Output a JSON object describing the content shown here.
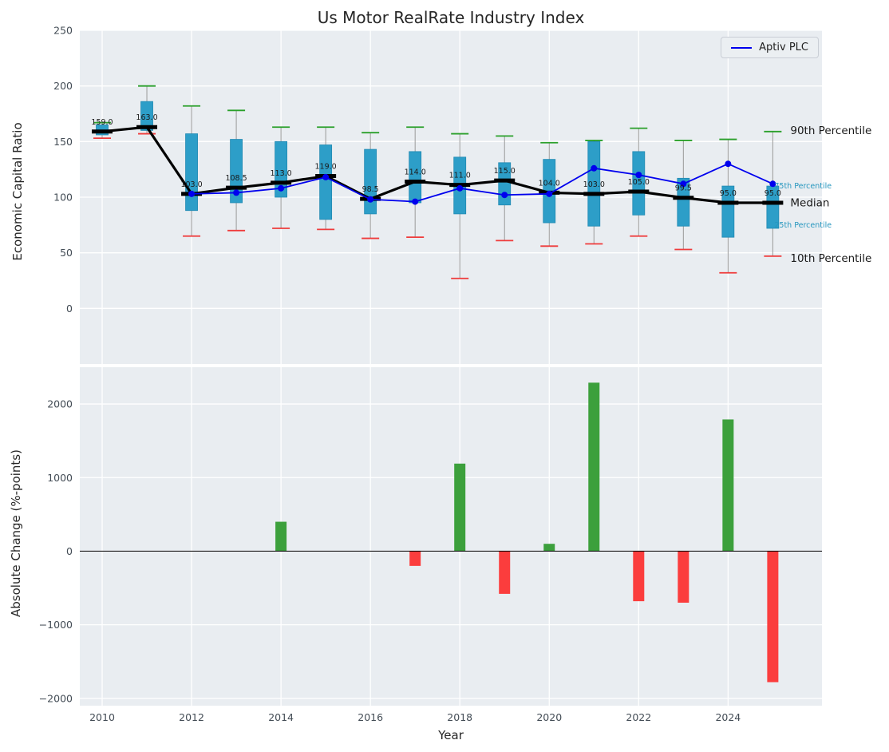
{
  "figure": {
    "title": "Us Motor RealRate Industry Index",
    "xlabel": "Year",
    "top_ylabel": "Economic Capital Ratio",
    "bottom_ylabel": "Absolute Change (%-points)"
  },
  "legend": {
    "label": "Aptiv PLC"
  },
  "colors": {
    "box_fill": "#2D9EC8",
    "box_edge": "#2089B2",
    "whisker": "#999999",
    "p90_cap": "#2AA02A",
    "p10_cap": "#EF3B3B",
    "median": "#000000",
    "aptiv_line": "#0000EE",
    "bar_positive": "#3CA03C",
    "bar_negative": "#FB3D3D",
    "annotation_dark": "#1A1A1A",
    "annotation_teal": "#2596BE",
    "plot_background": "#E9EDF1",
    "grid": "#FFFFFF",
    "tick_label": "#434C55"
  },
  "chart_data": [
    {
      "type": "box",
      "title": "Us Motor RealRate Industry Index",
      "ylabel": "Economic Capital Ratio",
      "ylim": [
        -50,
        250
      ],
      "yticks": [
        0,
        50,
        100,
        150,
        200,
        250
      ],
      "xlim": [
        2009.5,
        2026.1
      ],
      "xticks": [
        2010,
        2012,
        2014,
        2016,
        2018,
        2020,
        2022,
        2024
      ],
      "grid": true,
      "legend_position": "upper right",
      "years": [
        2010,
        2011,
        2012,
        2013,
        2014,
        2015,
        2016,
        2017,
        2018,
        2019,
        2020,
        2021,
        2022,
        2023,
        2024,
        2025
      ],
      "median": [
        159.0,
        163.0,
        103.0,
        108.5,
        113.0,
        119.0,
        98.5,
        114.0,
        111.0,
        115.0,
        104.0,
        103.0,
        105.0,
        99.5,
        95.0,
        95.0
      ],
      "q1": [
        156,
        160,
        88,
        95,
        100,
        80,
        85,
        95,
        85,
        93,
        77,
        74,
        84,
        74,
        64,
        72
      ],
      "q3": [
        165,
        186,
        157,
        152,
        150,
        147,
        143,
        141,
        136,
        131,
        134,
        150,
        141,
        117,
        110,
        110
      ],
      "p10": [
        153,
        157,
        65,
        70,
        72,
        71,
        63,
        64,
        27,
        61,
        56,
        58,
        65,
        53,
        32,
        47
      ],
      "p90": [
        167,
        200,
        182,
        178,
        163,
        163,
        158,
        163,
        157,
        155,
        149,
        151,
        162,
        151,
        152,
        159
      ],
      "series": [
        {
          "name": "Aptiv PLC",
          "x": [
            2012,
            2013,
            2014,
            2015,
            2016,
            2017,
            2018,
            2019,
            2020,
            2021,
            2022,
            2023,
            2024,
            2025
          ],
          "y": [
            103,
            104,
            108,
            118,
            98,
            96,
            108,
            102,
            103,
            126,
            120,
            112,
            130,
            112
          ]
        }
      ],
      "annotations": [
        {
          "label": "90th Percentile",
          "value": 160,
          "size": 13.5,
          "tone": "dark",
          "dx": 8
        },
        {
          "label": "75th Percentile",
          "value": 111,
          "size": 9.5,
          "tone": "teal",
          "dx": -12
        },
        {
          "label": "Median",
          "value": 95,
          "size": 13.5,
          "tone": "dark",
          "dx": 8
        },
        {
          "label": "25th Percentile",
          "value": 76,
          "size": 9.5,
          "tone": "teal",
          "dx": -12
        },
        {
          "label": "10th Percentile",
          "value": 45,
          "size": 13.5,
          "tone": "dark",
          "dx": 8
        }
      ]
    },
    {
      "type": "bar",
      "ylabel": "Absolute Change (%-points)",
      "xlabel": "Year",
      "ylim": [
        -2100,
        2500
      ],
      "yticks": [
        -2000,
        -1000,
        0,
        1000,
        2000
      ],
      "grid": true,
      "years": [
        2010,
        2011,
        2012,
        2013,
        2014,
        2015,
        2016,
        2017,
        2018,
        2019,
        2020,
        2021,
        2022,
        2023,
        2024,
        2025
      ],
      "values": [
        0,
        0,
        0,
        0,
        400,
        0,
        0,
        -200,
        1190,
        -580,
        100,
        2290,
        -680,
        -700,
        1790,
        -1780
      ]
    }
  ]
}
